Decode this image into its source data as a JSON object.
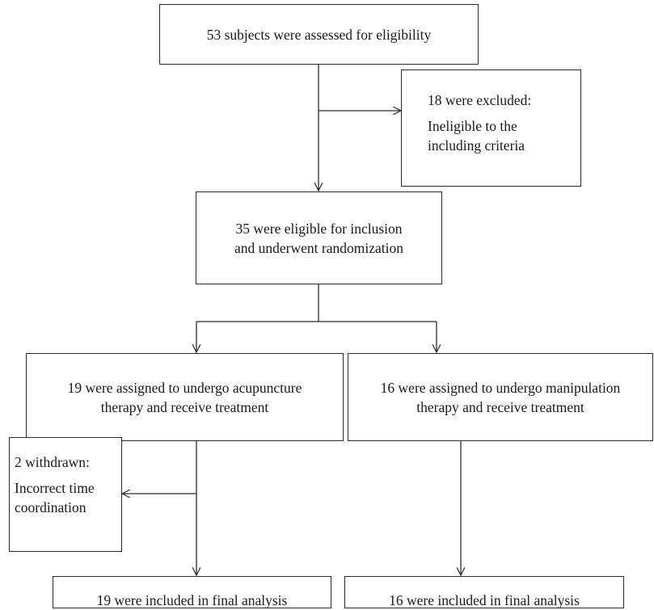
{
  "nodes": {
    "assessed": {
      "lines": [
        "53 subjects were assessed for eligibility"
      ]
    },
    "excluded": {
      "title": "18 were excluded:",
      "lines": [
        "Ineligible to the",
        "including criteria"
      ]
    },
    "eligible": {
      "lines": [
        "35 were eligible for inclusion",
        "and underwent randomization"
      ]
    },
    "acupuncture": {
      "lines": [
        "19 were assigned to undergo acupuncture",
        "therapy and receive treatment"
      ]
    },
    "manipulation": {
      "lines": [
        "16 were assigned to undergo manipulation",
        "therapy and receive treatment"
      ]
    },
    "withdrawn": {
      "title": "2 withdrawn:",
      "lines": [
        "Incorrect time",
        "coordination"
      ]
    },
    "final_acupuncture": {
      "lines": [
        "19 were included in final analysis"
      ]
    },
    "final_manipulation": {
      "lines": [
        "16 were included in final analysis"
      ]
    }
  },
  "colors": {
    "stroke": "#2b2b2b",
    "background": "#ffffff"
  }
}
